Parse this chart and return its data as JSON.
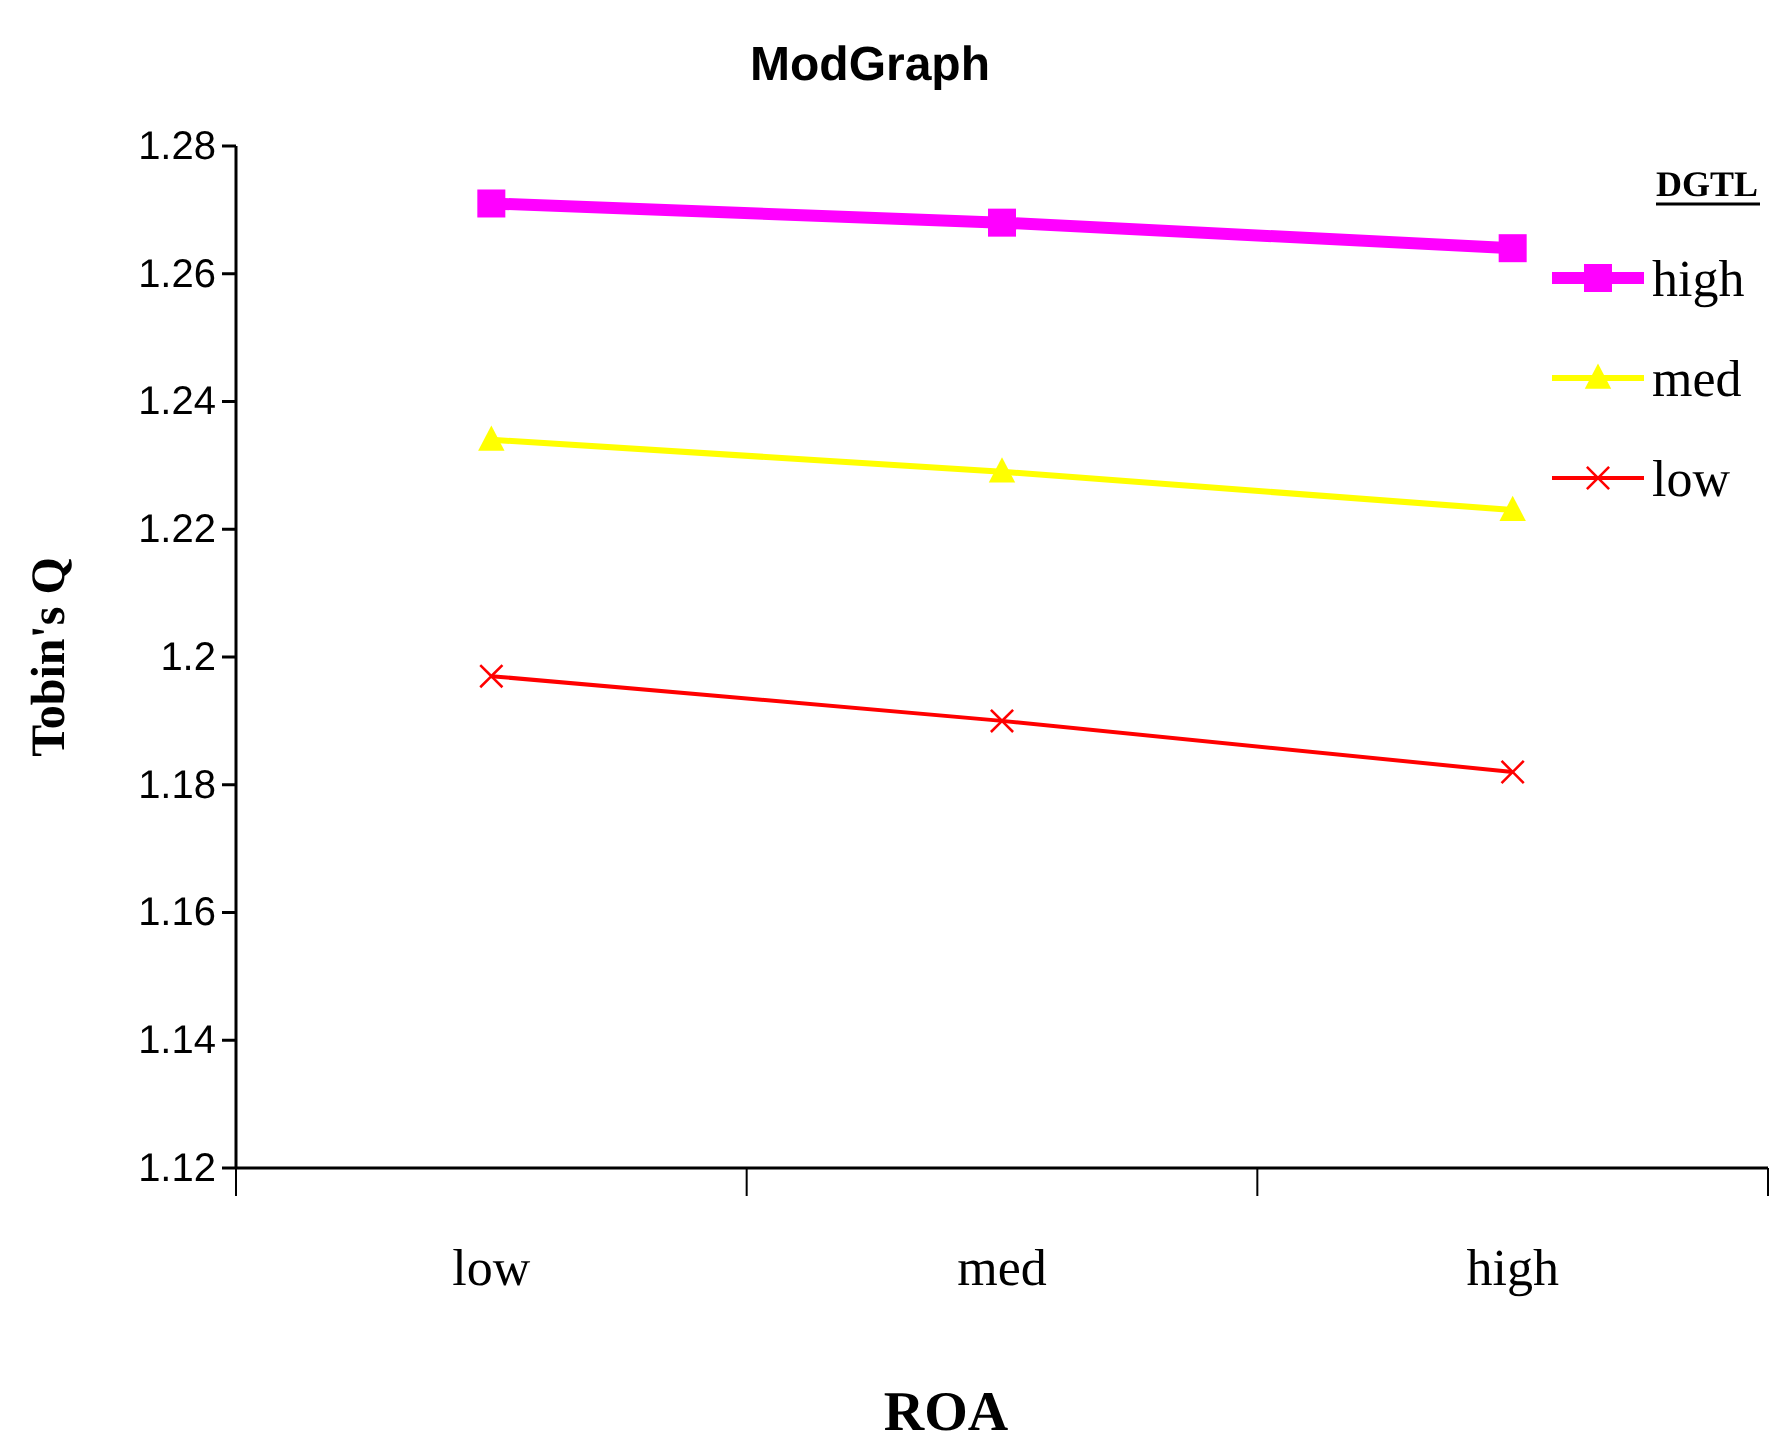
{
  "chart_data": {
    "type": "line",
    "title": "ModGraph",
    "xlabel": "ROA",
    "ylabel": "Tobin's Q",
    "legend_title": "DGTL",
    "categories": [
      "low",
      "med",
      "high"
    ],
    "series": [
      {
        "name": "high",
        "color": "#ff00ff",
        "marker": "square",
        "values": [
          1.271,
          1.268,
          1.264
        ]
      },
      {
        "name": "med",
        "color": "#ffff00",
        "marker": "triangle",
        "values": [
          1.234,
          1.229,
          1.223
        ]
      },
      {
        "name": "low",
        "color": "#ff0000",
        "marker": "cross",
        "values": [
          1.197,
          1.19,
          1.182
        ]
      }
    ],
    "ylim": [
      1.12,
      1.28
    ],
    "yticks": [
      1.12,
      1.14,
      1.16,
      1.18,
      1.2,
      1.22,
      1.24,
      1.26,
      1.28
    ],
    "grid": false,
    "legend": "top right"
  }
}
